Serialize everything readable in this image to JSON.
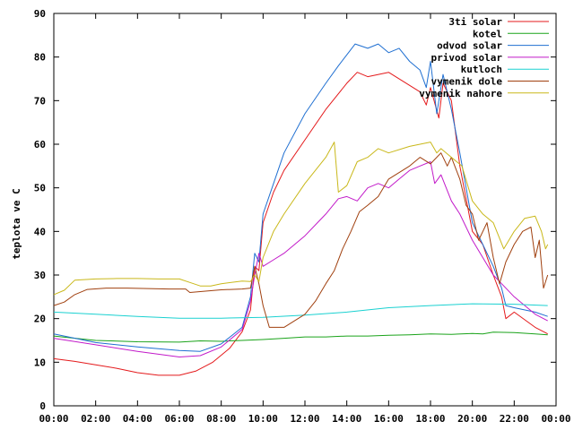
{
  "chart_data": {
    "type": "line",
    "ylabel": "teplota ve C",
    "xlim": [
      0,
      24
    ],
    "ylim": [
      0,
      90
    ],
    "x_ticks": [
      "00:00",
      "02:00",
      "04:00",
      "06:00",
      "08:00",
      "10:00",
      "12:00",
      "14:00",
      "16:00",
      "18:00",
      "20:00",
      "22:00",
      "00:00"
    ],
    "y_ticks": [
      "0",
      "10",
      "20",
      "30",
      "40",
      "50",
      "60",
      "70",
      "80",
      "90"
    ],
    "legend_position": "top-right",
    "series": [
      {
        "name": "3ti solar",
        "color": "#e41a1c",
        "points": [
          [
            0,
            10.8
          ],
          [
            1,
            10.2
          ],
          [
            2,
            9.4
          ],
          [
            3,
            8.6
          ],
          [
            4,
            7.6
          ],
          [
            5,
            7.0
          ],
          [
            6,
            7.0
          ],
          [
            6.8,
            8.0
          ],
          [
            7.6,
            10.0
          ],
          [
            8.4,
            13.2
          ],
          [
            9.0,
            17.0
          ],
          [
            9.4,
            22.0
          ],
          [
            9.6,
            32.0
          ],
          [
            9.8,
            31.0
          ],
          [
            10.0,
            42.0
          ],
          [
            10.5,
            49.0
          ],
          [
            11.0,
            54.0
          ],
          [
            12.0,
            61.0
          ],
          [
            13.0,
            68.0
          ],
          [
            14.0,
            74.0
          ],
          [
            14.5,
            76.5
          ],
          [
            15.0,
            75.5
          ],
          [
            16.0,
            76.5
          ],
          [
            17.0,
            73.5
          ],
          [
            17.5,
            72.0
          ],
          [
            17.8,
            69.0
          ],
          [
            18.0,
            73.0
          ],
          [
            18.4,
            66.0
          ],
          [
            18.6,
            74.0
          ],
          [
            19.0,
            70.0
          ],
          [
            19.4,
            55.0
          ],
          [
            20.0,
            40.0
          ],
          [
            20.5,
            37.0
          ],
          [
            21.0,
            30.0
          ],
          [
            21.4,
            25.0
          ],
          [
            21.6,
            20.0
          ],
          [
            22.0,
            21.5
          ],
          [
            23.0,
            18.0
          ],
          [
            23.6,
            16.5
          ]
        ]
      },
      {
        "name": "kotel",
        "color": "#1aa31a",
        "points": [
          [
            0,
            16.0
          ],
          [
            2,
            15.0
          ],
          [
            4,
            14.7
          ],
          [
            6,
            14.6
          ],
          [
            7,
            14.9
          ],
          [
            8,
            14.8
          ],
          [
            9,
            15.0
          ],
          [
            10,
            15.2
          ],
          [
            11,
            15.5
          ],
          [
            12,
            15.8
          ],
          [
            13,
            15.8
          ],
          [
            14,
            16.0
          ],
          [
            15,
            16.0
          ],
          [
            16,
            16.2
          ],
          [
            17,
            16.3
          ],
          [
            18,
            16.5
          ],
          [
            19,
            16.4
          ],
          [
            20,
            16.6
          ],
          [
            20.5,
            16.5
          ],
          [
            21,
            16.9
          ],
          [
            22,
            16.8
          ],
          [
            23,
            16.5
          ],
          [
            23.6,
            16.3
          ]
        ]
      },
      {
        "name": "odvod solar",
        "color": "#1f6fd1",
        "points": [
          [
            0,
            16.5
          ],
          [
            2,
            14.5
          ],
          [
            4,
            13.5
          ],
          [
            6,
            12.7
          ],
          [
            7,
            12.5
          ],
          [
            8,
            14.2
          ],
          [
            9,
            18.0
          ],
          [
            9.4,
            25.0
          ],
          [
            9.6,
            35.0
          ],
          [
            9.8,
            33.0
          ],
          [
            10.0,
            44.0
          ],
          [
            10.5,
            51.0
          ],
          [
            11.0,
            58.0
          ],
          [
            12.0,
            67.0
          ],
          [
            13.0,
            74.0
          ],
          [
            13.6,
            78.0
          ],
          [
            14.0,
            80.5
          ],
          [
            14.4,
            83.0
          ],
          [
            15.0,
            82.0
          ],
          [
            15.5,
            83.0
          ],
          [
            16.0,
            81.0
          ],
          [
            16.5,
            82.0
          ],
          [
            17.0,
            79.0
          ],
          [
            17.5,
            77.0
          ],
          [
            17.8,
            73.0
          ],
          [
            18.0,
            79.0
          ],
          [
            18.3,
            67.0
          ],
          [
            18.6,
            76.0
          ],
          [
            19.0,
            68.0
          ],
          [
            19.4,
            58.0
          ],
          [
            20.0,
            42.0
          ],
          [
            20.4,
            38.0
          ],
          [
            21.0,
            32.0
          ],
          [
            21.4,
            27.0
          ],
          [
            21.6,
            23.0
          ],
          [
            22.0,
            22.5
          ],
          [
            23.0,
            21.5
          ],
          [
            23.6,
            20.5
          ]
        ]
      },
      {
        "name": "privod solar",
        "color": "#c21ac9",
        "points": [
          [
            0,
            15.5
          ],
          [
            2,
            14.0
          ],
          [
            4,
            12.5
          ],
          [
            6,
            11.2
          ],
          [
            7,
            11.5
          ],
          [
            8,
            13.5
          ],
          [
            9,
            17.5
          ],
          [
            9.4,
            24.0
          ],
          [
            9.6,
            30.0
          ],
          [
            9.8,
            35.0
          ],
          [
            10.0,
            32.0
          ],
          [
            10.5,
            33.5
          ],
          [
            11.0,
            35.0
          ],
          [
            12.0,
            39.0
          ],
          [
            13.0,
            44.0
          ],
          [
            13.6,
            47.5
          ],
          [
            14.0,
            48.0
          ],
          [
            14.5,
            47.0
          ],
          [
            15.0,
            50.0
          ],
          [
            15.5,
            51.0
          ],
          [
            16.0,
            50.0
          ],
          [
            16.5,
            52.0
          ],
          [
            17.0,
            54.0
          ],
          [
            17.5,
            55.0
          ],
          [
            18.0,
            56.0
          ],
          [
            18.2,
            51.0
          ],
          [
            18.5,
            53.0
          ],
          [
            19.0,
            47.0
          ],
          [
            19.4,
            44.0
          ],
          [
            20.0,
            38.0
          ],
          [
            20.5,
            34.0
          ],
          [
            21.0,
            30.0
          ],
          [
            21.5,
            27.5
          ],
          [
            22.0,
            25.0
          ],
          [
            23.0,
            21.0
          ],
          [
            23.6,
            19.5
          ]
        ]
      },
      {
        "name": "kutloch",
        "color": "#1ad1d1",
        "points": [
          [
            0,
            21.5
          ],
          [
            2,
            21.0
          ],
          [
            4,
            20.5
          ],
          [
            6,
            20.1
          ],
          [
            8,
            20.1
          ],
          [
            10,
            20.3
          ],
          [
            12,
            20.8
          ],
          [
            14,
            21.5
          ],
          [
            16,
            22.5
          ],
          [
            18,
            23.0
          ],
          [
            20,
            23.4
          ],
          [
            22,
            23.3
          ],
          [
            23.6,
            23.0
          ]
        ]
      },
      {
        "name": "vymenik dole",
        "color": "#a0400f",
        "points": [
          [
            0,
            23.0
          ],
          [
            0.5,
            23.8
          ],
          [
            1,
            25.5
          ],
          [
            1.6,
            26.7
          ],
          [
            2.5,
            27.0
          ],
          [
            3.5,
            27.0
          ],
          [
            4.5,
            26.9
          ],
          [
            5.5,
            26.8
          ],
          [
            6.3,
            26.8
          ],
          [
            6.5,
            26.0
          ],
          [
            7,
            26.2
          ],
          [
            8,
            26.6
          ],
          [
            9,
            26.8
          ],
          [
            9.4,
            27.0
          ],
          [
            9.6,
            32.0
          ],
          [
            9.8,
            28.0
          ],
          [
            10.0,
            23.0
          ],
          [
            10.3,
            18.0
          ],
          [
            11,
            18.0
          ],
          [
            12,
            21.0
          ],
          [
            12.5,
            24.0
          ],
          [
            13,
            28.0
          ],
          [
            13.4,
            31.0
          ],
          [
            13.8,
            36.0
          ],
          [
            14.2,
            40.0
          ],
          [
            14.6,
            44.5
          ],
          [
            15.0,
            46.0
          ],
          [
            15.5,
            48.0
          ],
          [
            16,
            52.0
          ],
          [
            17,
            55.0
          ],
          [
            17.5,
            57.0
          ],
          [
            18,
            55.5
          ],
          [
            18.5,
            58.0
          ],
          [
            18.8,
            55.0
          ],
          [
            19,
            57.0
          ],
          [
            19.4,
            52.0
          ],
          [
            19.7,
            46.0
          ],
          [
            20,
            44.0
          ],
          [
            20.3,
            38.0
          ],
          [
            20.7,
            42.0
          ],
          [
            21.0,
            34.0
          ],
          [
            21.3,
            28.0
          ],
          [
            21.6,
            33.0
          ],
          [
            22.0,
            37.0
          ],
          [
            22.4,
            40.0
          ],
          [
            22.8,
            41.0
          ],
          [
            23.0,
            34.0
          ],
          [
            23.2,
            38.0
          ],
          [
            23.4,
            27.0
          ],
          [
            23.6,
            30.0
          ]
        ]
      },
      {
        "name": "vymenik nahore",
        "color": "#c9b81a",
        "points": [
          [
            0,
            25.5
          ],
          [
            0.5,
            26.5
          ],
          [
            1,
            28.8
          ],
          [
            2,
            29.1
          ],
          [
            3,
            29.2
          ],
          [
            4,
            29.2
          ],
          [
            5,
            29.1
          ],
          [
            6,
            29.1
          ],
          [
            6.5,
            28.3
          ],
          [
            7,
            27.5
          ],
          [
            7.5,
            27.5
          ],
          [
            8,
            28.0
          ],
          [
            9,
            28.6
          ],
          [
            9.4,
            28.5
          ],
          [
            9.6,
            30.0
          ],
          [
            9.8,
            28.5
          ],
          [
            10.0,
            34.0
          ],
          [
            10.5,
            40.0
          ],
          [
            11.0,
            44.0
          ],
          [
            12.0,
            51.0
          ],
          [
            13.0,
            57.0
          ],
          [
            13.4,
            60.5
          ],
          [
            13.6,
            49.0
          ],
          [
            14.0,
            50.5
          ],
          [
            14.5,
            56.0
          ],
          [
            15.0,
            57.0
          ],
          [
            15.5,
            59.0
          ],
          [
            16,
            58.0
          ],
          [
            17,
            59.5
          ],
          [
            18,
            60.5
          ],
          [
            18.3,
            58.0
          ],
          [
            18.5,
            59.0
          ],
          [
            19.0,
            57.0
          ],
          [
            19.5,
            55.0
          ],
          [
            20.0,
            47.0
          ],
          [
            20.5,
            44.0
          ],
          [
            21.0,
            42.0
          ],
          [
            21.5,
            36.0
          ],
          [
            22.0,
            40.0
          ],
          [
            22.5,
            43.0
          ],
          [
            23.0,
            43.5
          ],
          [
            23.3,
            40.0
          ],
          [
            23.5,
            36.0
          ],
          [
            23.6,
            37.0
          ]
        ]
      }
    ]
  }
}
